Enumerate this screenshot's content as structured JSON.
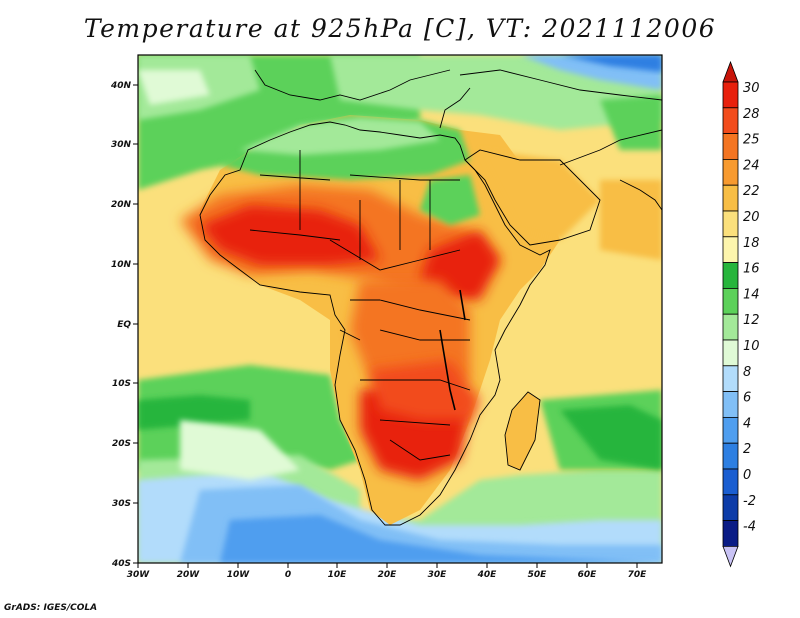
{
  "title": "Temperature at 925hPa [C], VT: 2021112006",
  "footer": "GrADS: IGES/COLA",
  "map": {
    "region": "Africa and surrounding oceans",
    "lon_range": [
      -30,
      75
    ],
    "lat_range": [
      -40,
      45
    ],
    "variable": "Temperature",
    "level": "925hPa",
    "units": "C",
    "valid_time": "2021112006"
  },
  "lon_labels": [
    "30W",
    "20W",
    "10W",
    "0",
    "10E",
    "20E",
    "30E",
    "40E",
    "50E",
    "60E",
    "70E"
  ],
  "lat_labels": [
    "40N",
    "30N",
    "20N",
    "10N",
    "EQ",
    "10S",
    "20S",
    "30S",
    "40S"
  ],
  "colorbar": {
    "labels": [
      "30",
      "28",
      "25",
      "24",
      "22",
      "20",
      "18",
      "16",
      "14",
      "12",
      "10",
      "8",
      "6",
      "4",
      "2",
      "0",
      "-2",
      "-4"
    ],
    "colors": [
      "#e8200c",
      "#f24c1c",
      "#f47522",
      "#f79a2f",
      "#f8be45",
      "#fbe07c",
      "#fdf5ad",
      "#27b53c",
      "#5cd15a",
      "#a3e999",
      "#e0fad6",
      "#b2dcfb",
      "#81bff6",
      "#4f9eef",
      "#2d7fe2",
      "#1a5ed1",
      "#0d3ca8",
      "#0a1c86"
    ],
    "top_triangle_color": "#c8150a",
    "bottom_triangle_color": "#c9c3f5"
  },
  "colors": {
    "ocean_warm": "#fbe07c",
    "ocean_mild": "#f8be45",
    "ocean_green": "#5cd15a",
    "ocean_cold": "#81bff6",
    "land_hot": "#e8200c",
    "outline": "#000000"
  }
}
